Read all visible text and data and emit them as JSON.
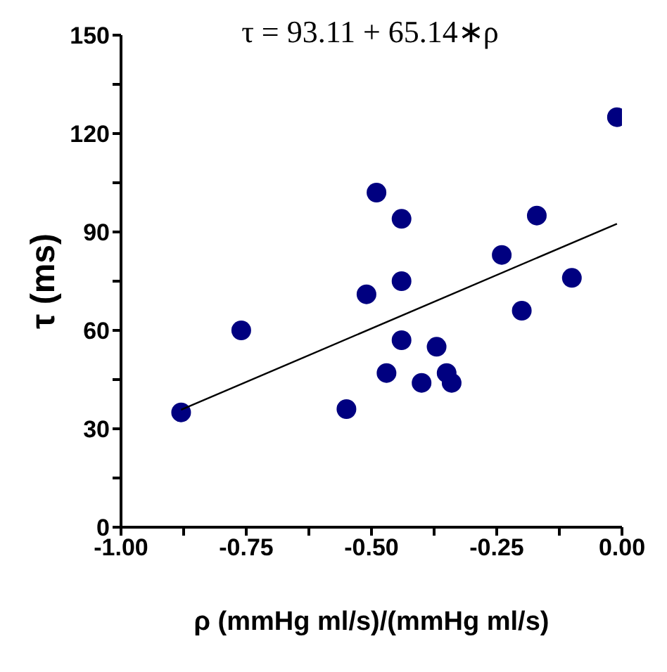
{
  "chart_data": {
    "type": "scatter",
    "title": "τ = 93.11 + 65.14∗ρ",
    "xlabel": "ρ  (mmHg ml/s)/(mmHg ml/s)",
    "ylabel": "τ (ms)",
    "series": [
      {
        "color": "#000080",
        "marker": "circle",
        "x": [
          -0.88,
          -0.76,
          -0.55,
          -0.49,
          -0.51,
          -0.47,
          -0.44,
          -0.44,
          -0.44,
          -0.4,
          -0.37,
          -0.35,
          -0.34,
          -0.24,
          -0.2,
          -0.17,
          -0.1,
          -0.01
        ],
        "values": [
          35,
          60,
          36,
          102,
          71,
          47,
          94,
          75,
          57,
          44,
          55,
          47,
          44,
          83,
          66,
          95,
          76,
          125
        ]
      },
      {
        "type": "line",
        "color": "#000000",
        "x": [
          -0.88,
          -0.01
        ],
        "values": [
          35.8,
          92.5
        ]
      }
    ],
    "xlim": [
      -1,
      0
    ],
    "xticks": [
      {
        "value": -1,
        "label": "-1.00"
      },
      {
        "value": -0.875,
        "label": null
      },
      {
        "value": -0.75,
        "label": "-0.75"
      },
      {
        "value": -0.625,
        "label": null
      },
      {
        "value": -0.5,
        "label": "-0.50"
      },
      {
        "value": -0.375,
        "label": null
      },
      {
        "value": -0.25,
        "label": "-0.25"
      },
      {
        "value": -0.125,
        "label": null
      },
      {
        "value": 0,
        "label": "0.00"
      }
    ],
    "ylim": [
      0,
      150
    ],
    "yticks": [
      0,
      {
        "value": 15,
        "label": null
      },
      30,
      {
        "value": 45,
        "label": null
      },
      60,
      {
        "value": 75,
        "label": null
      },
      90,
      {
        "value": 105,
        "label": null
      },
      120,
      {
        "value": 135,
        "label": null
      },
      150
    ],
    "grid": false,
    "legend": false
  }
}
